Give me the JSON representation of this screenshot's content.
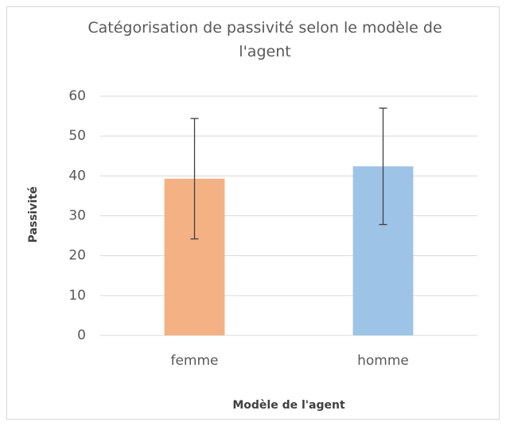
{
  "chart_data": {
    "type": "bar",
    "title": "Catégorisation de passivité selon le modèle de l'agent",
    "xlabel": "Modèle de l'agent",
    "ylabel": "Passivité",
    "categories": [
      "femme",
      "homme"
    ],
    "values": [
      39.3,
      42.4
    ],
    "errors": [
      15.1,
      14.6
    ],
    "colors": [
      "#f4b183",
      "#9dc3e6"
    ],
    "ylim": [
      0,
      60
    ],
    "yticks": [
      0,
      10,
      20,
      30,
      40,
      50,
      60
    ],
    "grid": true
  }
}
